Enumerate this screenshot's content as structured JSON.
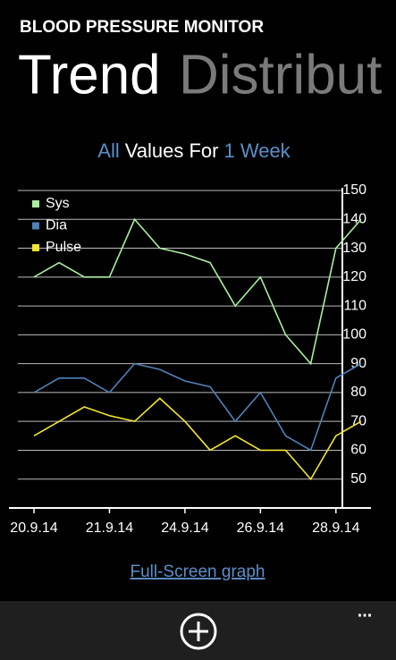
{
  "app_title": "BLOOD PRESSURE MONITOR",
  "pivots": [
    "Trend",
    "Distribut"
  ],
  "link": "Full-Screen graph",
  "app_bar_more": "...",
  "chart_data": {
    "type": "line",
    "title_parts": [
      "All",
      "Values For",
      "1 Week"
    ],
    "categories": [
      "20.9.14",
      null,
      null,
      "21.9.14",
      null,
      null,
      "24.9.14",
      null,
      null,
      "26.9.14",
      null,
      null,
      "28.9.14",
      null
    ],
    "series": [
      {
        "name": "Sys",
        "color": "#a8ee9e",
        "values": [
          120,
          125,
          120,
          120,
          140,
          130,
          128,
          125,
          110,
          120,
          100,
          90,
          130,
          140
        ]
      },
      {
        "name": "Dia",
        "color": "#4f82b8",
        "values": [
          80,
          85,
          85,
          80,
          90,
          88,
          84,
          82,
          70,
          80,
          65,
          60,
          85,
          90
        ]
      },
      {
        "name": "Pulse",
        "color": "#f2e52e",
        "values": [
          65,
          70,
          75,
          72,
          70,
          78,
          70,
          60,
          65,
          60,
          60,
          50,
          65,
          70
        ]
      }
    ],
    "ylim": [
      40,
      150
    ],
    "yticks": [
      50,
      60,
      70,
      80,
      90,
      100,
      110,
      120,
      130,
      140,
      150
    ],
    "grid": true,
    "legend": "top-left"
  }
}
